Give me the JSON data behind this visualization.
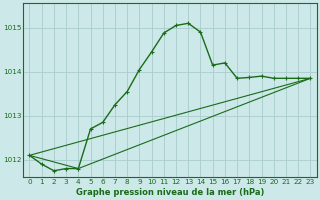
{
  "title": "Graphe pression niveau de la mer (hPa)",
  "bg_color": "#cce8e8",
  "grid_color": "#aacccc",
  "line_color": "#1a6b1a",
  "xlim": [
    -0.5,
    23.5
  ],
  "ylim": [
    1011.6,
    1015.55
  ],
  "yticks": [
    1012,
    1013,
    1014,
    1015
  ],
  "xticks": [
    0,
    1,
    2,
    3,
    4,
    5,
    6,
    7,
    8,
    9,
    10,
    11,
    12,
    13,
    14,
    15,
    16,
    17,
    18,
    19,
    20,
    21,
    22,
    23
  ],
  "series1_x": [
    0,
    1,
    2,
    3,
    4,
    5,
    6,
    7,
    8,
    9,
    10,
    11,
    12,
    13,
    14,
    15,
    16,
    17,
    18,
    19,
    20,
    21,
    22,
    23
  ],
  "series1_y": [
    1012.1,
    1011.9,
    1011.75,
    1011.8,
    1011.8,
    1012.7,
    1012.85,
    1013.25,
    1013.55,
    1014.05,
    1014.45,
    1014.88,
    1015.05,
    1015.1,
    1014.9,
    1014.15,
    1014.2,
    1013.85,
    1013.87,
    1013.9,
    1013.85,
    1013.85,
    1013.85,
    1013.85
  ],
  "series2_x": [
    0,
    23
  ],
  "series2_y": [
    1012.1,
    1013.85
  ],
  "series3_x": [
    0,
    4,
    23
  ],
  "series3_y": [
    1012.1,
    1011.8,
    1013.85
  ],
  "xlabel_fontsize": 6.0,
  "tick_fontsize": 5.2,
  "linewidth1": 1.0,
  "linewidth2": 0.8
}
